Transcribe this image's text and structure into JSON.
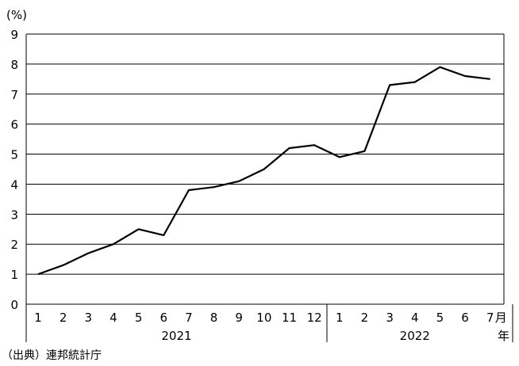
{
  "chart_data": {
    "type": "line",
    "y_unit": "(%)",
    "ylim": [
      0,
      9
    ],
    "y_ticks": [
      0,
      1,
      2,
      3,
      4,
      5,
      6,
      7,
      8,
      9
    ],
    "categories": [
      "1",
      "2",
      "3",
      "4",
      "5",
      "6",
      "7",
      "8",
      "9",
      "10",
      "11",
      "12",
      "1",
      "2",
      "3",
      "4",
      "5",
      "6",
      "7"
    ],
    "year_groups": [
      {
        "label": "2021",
        "count": 12
      },
      {
        "label": "2022",
        "count": 7
      }
    ],
    "month_suffix": "月",
    "year_suffix": "年",
    "series": [
      {
        "values": [
          1.0,
          1.3,
          1.7,
          2.0,
          2.5,
          2.3,
          3.8,
          3.9,
          4.1,
          4.5,
          5.2,
          5.3,
          4.9,
          5.1,
          7.3,
          7.4,
          7.9,
          7.6,
          7.5
        ]
      }
    ],
    "grid": true,
    "source": "（出典）連邦統計庁",
    "line_color": "#000000"
  }
}
